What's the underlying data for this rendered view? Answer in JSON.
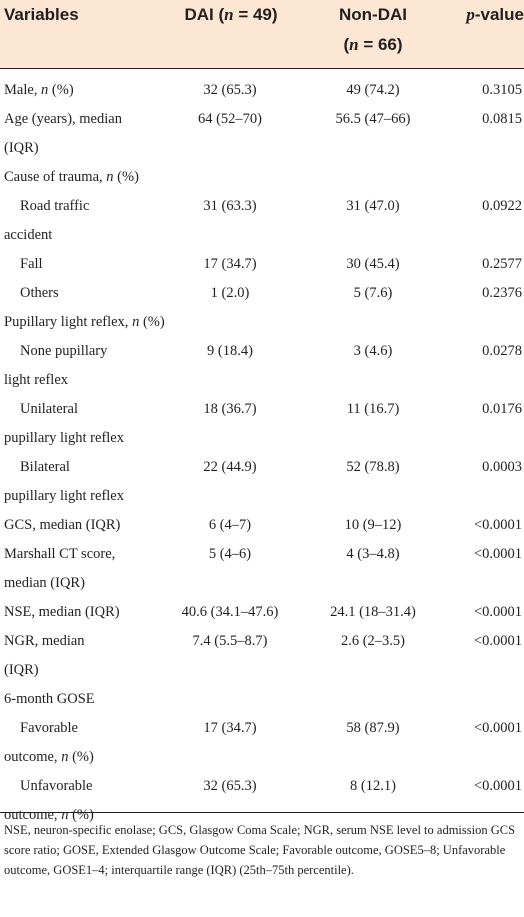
{
  "header": {
    "variables": "Variables",
    "dai_prefix": "DAI (",
    "dai_n": "n",
    "dai_suffix": " = 49)",
    "nondai_line1": "Non-DAI",
    "nondai_prefix": "(",
    "nondai_n": "n",
    "nondai_suffix": " = 66)",
    "p_italic": "p",
    "p_rest": "-value"
  },
  "rows": [
    {
      "l1": "Male, ",
      "l1_it": "n",
      "l1_tail": " (%)",
      "dai": "32 (65.3)",
      "nondai": "49 (74.2)",
      "p": "0.3105"
    },
    {
      "l1": "Age (years), median",
      "l2": "(IQR)",
      "dai": "64 (52–70)",
      "nondai": "56.5 (47–66)",
      "p": "0.0815"
    },
    {
      "l1": "Cause of trauma, ",
      "l1_it": "n",
      "l1_tail": " (%)"
    },
    {
      "l1": "Road traffic",
      "l2": "accident",
      "dai": "31 (63.3)",
      "nondai": "31 (47.0)",
      "p": "0.0922"
    },
    {
      "l1": "Fall",
      "dai": "17 (34.7)",
      "nondai": "30 (45.4)",
      "p": "0.2577"
    },
    {
      "l1": "Others",
      "dai": "1 (2.0)",
      "nondai": "5 (7.6)",
      "p": "0.2376"
    },
    {
      "l1": "Pupillary light reflex, ",
      "l1_it": "n",
      "l1_tail": " (%)"
    },
    {
      "l1": "None pupillary",
      "l2": "light reflex",
      "dai": "9 (18.4)",
      "nondai": "3 (4.6)",
      "p": "0.0278"
    },
    {
      "l1": "Unilateral",
      "l2": "pupillary light reflex",
      "dai": "18 (36.7)",
      "nondai": "11 (16.7)",
      "p": "0.0176"
    },
    {
      "l1": "Bilateral",
      "l2": "pupillary light reflex",
      "dai": "22 (44.9)",
      "nondai": "52 (78.8)",
      "p": "0.0003"
    },
    {
      "l1": "GCS, median (IQR)",
      "dai": "6 (4–7)",
      "nondai": "10 (9–12)",
      "p": "<0.0001"
    },
    {
      "l1": "Marshall CT score,",
      "l2": "median (IQR)",
      "dai": "5 (4–6)",
      "nondai": "4 (3–4.8)",
      "p": "<0.0001"
    },
    {
      "l1": "NSE, median (IQR)",
      "dai": "40.6 (34.1–47.6)",
      "nondai": "24.1 (18–31.4)",
      "p": "<0.0001"
    },
    {
      "l1": "NGR, median",
      "l2": "(IQR)",
      "dai": "7.4 (5.5–8.7)",
      "nondai": "2.6 (2–3.5)",
      "p": "<0.0001"
    },
    {
      "l1": "6-month GOSE"
    },
    {
      "l1": "Favorable",
      "l2": "outcome, ",
      "l2_it": "n",
      "l2_tail": " (%)",
      "dai": "17 (34.7)",
      "nondai": "58 (87.9)",
      "p": "<0.0001"
    },
    {
      "l1": "Unfavorable",
      "l2": "outcome, ",
      "l2_it": "n",
      "l2_tail": " (%)",
      "dai": "32 (65.3)",
      "nondai": "8 (12.1)",
      "p": "<0.0001"
    }
  ],
  "footnote": "NSE, neuron-specific enolase; GCS, Glasgow Coma Scale; NGR, serum NSE level to admission GCS score ratio; GOSE, Extended Glasgow Outcome Scale; Favorable outcome, GOSE5–8; Unfavorable outcome, GOSE1–4; interquartile range (IQR) (25th–75th percentile)."
}
